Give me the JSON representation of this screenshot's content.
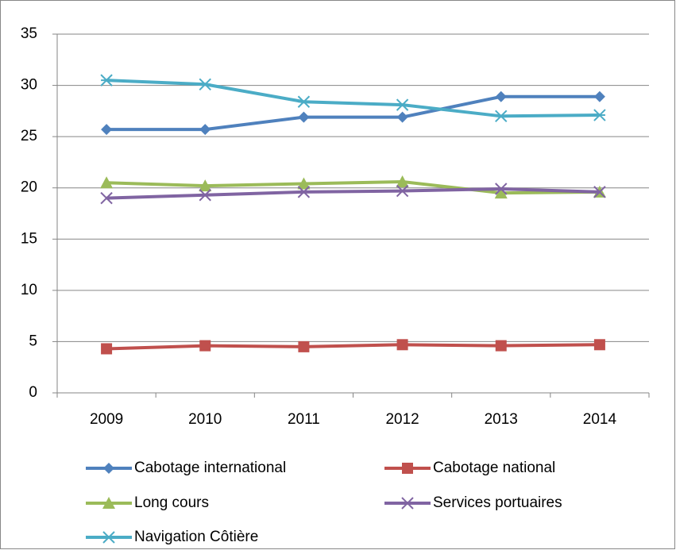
{
  "chart_data": {
    "type": "line",
    "categories": [
      "2009",
      "2010",
      "2011",
      "2012",
      "2013",
      "2014"
    ],
    "series": [
      {
        "name": "Cabotage international",
        "color": "#4f81bd",
        "marker": "diamond",
        "values": [
          25.7,
          25.7,
          26.9,
          26.9,
          28.9,
          28.9
        ]
      },
      {
        "name": "Cabotage national",
        "color": "#c0504d",
        "marker": "square",
        "values": [
          4.3,
          4.6,
          4.5,
          4.7,
          4.6,
          4.7
        ]
      },
      {
        "name": "Long cours",
        "color": "#9bbb59",
        "marker": "triangle",
        "values": [
          20.5,
          20.2,
          20.4,
          20.6,
          19.5,
          19.6
        ]
      },
      {
        "name": "Services portuaires",
        "color": "#8064a2",
        "marker": "x",
        "values": [
          19.0,
          19.3,
          19.6,
          19.7,
          19.9,
          19.6
        ]
      },
      {
        "name": "Navigation Côtière",
        "color": "#4bacc6",
        "marker": "asterisk",
        "values": [
          30.5,
          30.1,
          28.4,
          28.1,
          27.0,
          27.1
        ]
      }
    ],
    "ylim": [
      0,
      35
    ],
    "yticks": [
      0,
      5,
      10,
      15,
      20,
      25,
      30,
      35
    ],
    "grid": true,
    "legend": "bottom"
  }
}
